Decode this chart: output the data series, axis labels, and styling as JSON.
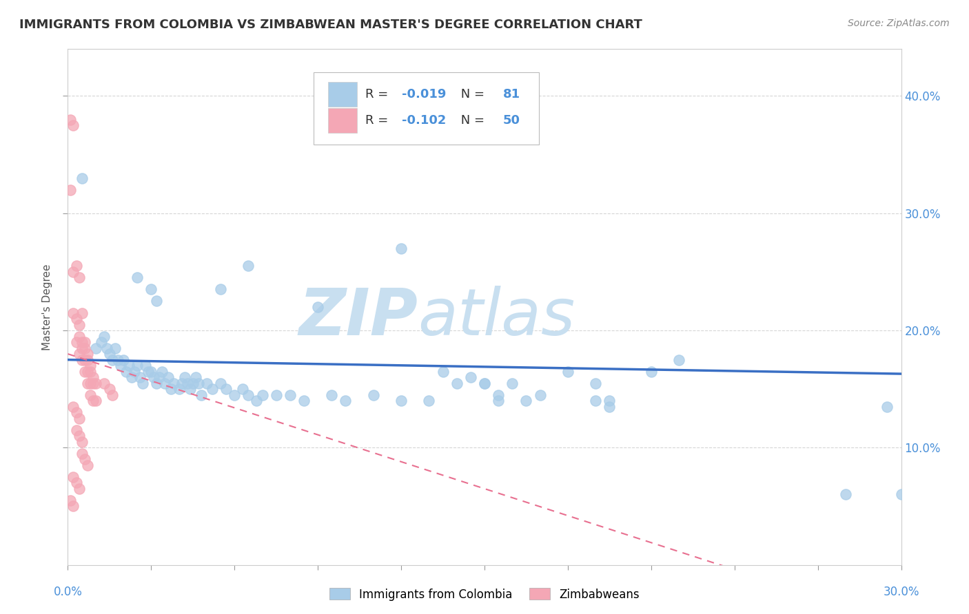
{
  "title": "IMMIGRANTS FROM COLOMBIA VS ZIMBABWEAN MASTER'S DEGREE CORRELATION CHART",
  "source": "Source: ZipAtlas.com",
  "ylabel": "Master's Degree",
  "xlim": [
    0.0,
    0.3
  ],
  "ylim": [
    0.0,
    0.44
  ],
  "colombia_color": "#a8cce8",
  "zimbabwe_color": "#f4a7b5",
  "colombia_line_color": "#3a6fc4",
  "zimbabwe_line_color": "#e87090",
  "colombia_scatter": [
    [
      0.005,
      0.33
    ],
    [
      0.01,
      0.185
    ],
    [
      0.012,
      0.19
    ],
    [
      0.013,
      0.195
    ],
    [
      0.014,
      0.185
    ],
    [
      0.015,
      0.18
    ],
    [
      0.016,
      0.175
    ],
    [
      0.017,
      0.185
    ],
    [
      0.018,
      0.175
    ],
    [
      0.019,
      0.17
    ],
    [
      0.02,
      0.175
    ],
    [
      0.021,
      0.165
    ],
    [
      0.022,
      0.17
    ],
    [
      0.023,
      0.16
    ],
    [
      0.024,
      0.165
    ],
    [
      0.025,
      0.17
    ],
    [
      0.026,
      0.16
    ],
    [
      0.027,
      0.155
    ],
    [
      0.028,
      0.17
    ],
    [
      0.029,
      0.165
    ],
    [
      0.03,
      0.165
    ],
    [
      0.031,
      0.16
    ],
    [
      0.032,
      0.155
    ],
    [
      0.033,
      0.16
    ],
    [
      0.034,
      0.165
    ],
    [
      0.035,
      0.155
    ],
    [
      0.036,
      0.16
    ],
    [
      0.037,
      0.15
    ],
    [
      0.038,
      0.155
    ],
    [
      0.04,
      0.15
    ],
    [
      0.041,
      0.155
    ],
    [
      0.042,
      0.16
    ],
    [
      0.043,
      0.155
    ],
    [
      0.044,
      0.15
    ],
    [
      0.045,
      0.155
    ],
    [
      0.046,
      0.16
    ],
    [
      0.047,
      0.155
    ],
    [
      0.048,
      0.145
    ],
    [
      0.05,
      0.155
    ],
    [
      0.052,
      0.15
    ],
    [
      0.055,
      0.155
    ],
    [
      0.057,
      0.15
    ],
    [
      0.06,
      0.145
    ],
    [
      0.063,
      0.15
    ],
    [
      0.065,
      0.145
    ],
    [
      0.068,
      0.14
    ],
    [
      0.07,
      0.145
    ],
    [
      0.025,
      0.245
    ],
    [
      0.03,
      0.235
    ],
    [
      0.032,
      0.225
    ],
    [
      0.055,
      0.235
    ],
    [
      0.065,
      0.255
    ],
    [
      0.075,
      0.145
    ],
    [
      0.08,
      0.145
    ],
    [
      0.085,
      0.14
    ],
    [
      0.09,
      0.22
    ],
    [
      0.095,
      0.145
    ],
    [
      0.1,
      0.14
    ],
    [
      0.11,
      0.145
    ],
    [
      0.12,
      0.14
    ],
    [
      0.13,
      0.14
    ],
    [
      0.135,
      0.165
    ],
    [
      0.14,
      0.155
    ],
    [
      0.145,
      0.16
    ],
    [
      0.15,
      0.155
    ],
    [
      0.155,
      0.145
    ],
    [
      0.16,
      0.155
    ],
    [
      0.165,
      0.14
    ],
    [
      0.17,
      0.145
    ],
    [
      0.18,
      0.165
    ],
    [
      0.19,
      0.155
    ],
    [
      0.195,
      0.14
    ],
    [
      0.15,
      0.155
    ],
    [
      0.155,
      0.14
    ],
    [
      0.19,
      0.14
    ],
    [
      0.195,
      0.135
    ],
    [
      0.21,
      0.165
    ],
    [
      0.22,
      0.175
    ],
    [
      0.12,
      0.27
    ],
    [
      0.295,
      0.135
    ],
    [
      0.28,
      0.06
    ],
    [
      0.3,
      0.06
    ]
  ],
  "zimbabwe_scatter": [
    [
      0.001,
      0.38
    ],
    [
      0.002,
      0.375
    ],
    [
      0.001,
      0.32
    ],
    [
      0.002,
      0.25
    ],
    [
      0.003,
      0.255
    ],
    [
      0.004,
      0.245
    ],
    [
      0.002,
      0.215
    ],
    [
      0.003,
      0.21
    ],
    [
      0.004,
      0.205
    ],
    [
      0.005,
      0.215
    ],
    [
      0.003,
      0.19
    ],
    [
      0.004,
      0.195
    ],
    [
      0.005,
      0.19
    ],
    [
      0.006,
      0.19
    ],
    [
      0.004,
      0.18
    ],
    [
      0.005,
      0.185
    ],
    [
      0.006,
      0.185
    ],
    [
      0.007,
      0.18
    ],
    [
      0.005,
      0.175
    ],
    [
      0.006,
      0.175
    ],
    [
      0.007,
      0.175
    ],
    [
      0.008,
      0.17
    ],
    [
      0.006,
      0.165
    ],
    [
      0.007,
      0.165
    ],
    [
      0.008,
      0.165
    ],
    [
      0.009,
      0.16
    ],
    [
      0.007,
      0.155
    ],
    [
      0.008,
      0.155
    ],
    [
      0.009,
      0.155
    ],
    [
      0.01,
      0.155
    ],
    [
      0.008,
      0.145
    ],
    [
      0.009,
      0.14
    ],
    [
      0.01,
      0.14
    ],
    [
      0.002,
      0.135
    ],
    [
      0.003,
      0.13
    ],
    [
      0.004,
      0.125
    ],
    [
      0.003,
      0.115
    ],
    [
      0.004,
      0.11
    ],
    [
      0.005,
      0.105
    ],
    [
      0.005,
      0.095
    ],
    [
      0.006,
      0.09
    ],
    [
      0.007,
      0.085
    ],
    [
      0.002,
      0.075
    ],
    [
      0.003,
      0.07
    ],
    [
      0.004,
      0.065
    ],
    [
      0.001,
      0.055
    ],
    [
      0.002,
      0.05
    ],
    [
      0.013,
      0.155
    ],
    [
      0.015,
      0.15
    ],
    [
      0.016,
      0.145
    ]
  ],
  "watermark_zip": "ZIP",
  "watermark_atlas": "atlas",
  "watermark_color": "#c8dff0",
  "background_color": "#ffffff",
  "grid_color": "#cccccc"
}
